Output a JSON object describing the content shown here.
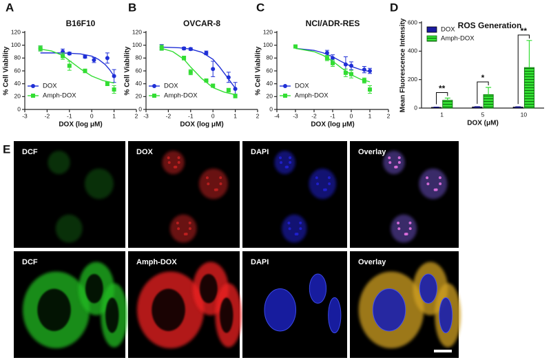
{
  "chart_data": [
    {
      "type": "scatter",
      "label": "A",
      "title": "B16F10",
      "x_label": "DOX (log μM)",
      "y_label": "% Cell Viability",
      "xlim": [
        -3,
        2
      ],
      "xticks": [
        -3,
        -2,
        -1,
        0,
        1,
        2
      ],
      "ylim": [
        0,
        120
      ],
      "yticks": [
        0,
        20,
        40,
        60,
        80,
        100,
        120
      ],
      "legend": "lower left",
      "series": [
        {
          "name": "DOX",
          "color": "#1f2fd6",
          "marker": "circle",
          "x": [
            -2.3,
            -1.3,
            -1,
            -0.3,
            0.1,
            0.7,
            1
          ],
          "values": [
            95,
            90,
            87,
            82,
            77,
            80,
            52
          ],
          "errors": [
            4,
            4,
            2,
            2,
            4,
            8,
            10
          ],
          "fit": {
            "x": [
              -2.3,
              -1.5,
              -1,
              -0.5,
              0,
              0.3,
              0.6,
              0.8,
              1
            ],
            "values": [
              88,
              88,
              87.5,
              86.5,
              83,
              78,
              70,
              62,
              52
            ]
          }
        },
        {
          "name": "Amph-DOX",
          "color": "#33dd33",
          "marker": "square",
          "x": [
            -2.3,
            -1.3,
            -1,
            -0.3,
            0.7,
            1
          ],
          "values": [
            95,
            83,
            68,
            60,
            40,
            31
          ],
          "errors": [
            4,
            5,
            7,
            3,
            3,
            6
          ],
          "fit": {
            "x": [
              -2.3,
              -1.8,
              -1.3,
              -1,
              -0.5,
              0,
              0.5,
              1
            ],
            "values": [
              94,
              91,
              84,
              76,
              63,
              52,
              45,
              41
            ]
          }
        }
      ]
    },
    {
      "type": "scatter",
      "label": "B",
      "title": "OVCAR-8",
      "x_label": "DOX (log μM)",
      "y_label": "% Cell Viability",
      "xlim": [
        -3,
        2
      ],
      "xticks": [
        -3,
        -2,
        -1,
        0,
        1,
        2
      ],
      "ylim": [
        0,
        120
      ],
      "yticks": [
        0,
        20,
        40,
        60,
        80,
        100,
        120
      ],
      "legend": "lower left",
      "series": [
        {
          "name": "DOX",
          "color": "#1f2fd6",
          "marker": "circle",
          "x": [
            -2.3,
            -1.3,
            -1,
            -0.3,
            0,
            0.7,
            1
          ],
          "values": [
            97,
            95,
            94,
            88,
            63,
            50,
            32
          ],
          "errors": [
            4,
            2,
            2,
            3,
            12,
            8,
            10
          ],
          "fit": {
            "x": [
              -2.3,
              -1.5,
              -1,
              -0.5,
              0,
              0.3,
              0.6,
              1
            ],
            "values": [
              97,
              96,
              94,
              89,
              78,
              66,
              52,
              33
            ]
          }
        },
        {
          "name": "Amph-DOX",
          "color": "#33dd33",
          "marker": "square",
          "x": [
            -2.3,
            -1.3,
            -1,
            -0.3,
            0,
            0.7,
            1
          ],
          "values": [
            96,
            80,
            58,
            45,
            37,
            30,
            21
          ],
          "errors": [
            4,
            3,
            4,
            2,
            2,
            3,
            3
          ],
          "fit": {
            "x": [
              -2.3,
              -1.8,
              -1.3,
              -1,
              -0.5,
              0,
              0.5,
              1
            ],
            "values": [
              95,
              90,
              78,
              66,
              48,
              34,
              27,
              23
            ]
          }
        }
      ]
    },
    {
      "type": "scatter",
      "label": "C",
      "title": "NCI/ADR-RES",
      "x_label": "DOX (log μM)",
      "y_label": "% Cell Viability",
      "xlim": [
        -4,
        2
      ],
      "xticks": [
        -4,
        -3,
        -2,
        -1,
        0,
        1,
        2
      ],
      "ylim": [
        0,
        120
      ],
      "yticks": [
        0,
        20,
        40,
        60,
        80,
        100,
        120
      ],
      "legend": "lower left",
      "series": [
        {
          "name": "DOX",
          "color": "#1f2fd6",
          "marker": "circle",
          "x": [
            -3,
            -1.3,
            -1,
            -0.3,
            0,
            0.7,
            1
          ],
          "values": [
            98,
            88,
            80,
            70,
            68,
            62,
            60
          ],
          "errors": [
            2,
            4,
            5,
            12,
            6,
            5,
            4
          ],
          "fit": {
            "x": [
              -3,
              -2,
              -1.5,
              -1,
              -0.5,
              0,
              0.5,
              1
            ],
            "values": [
              95,
              92,
              88,
              82,
              74,
              67,
              62,
              59
            ]
          }
        },
        {
          "name": "Amph-DOX",
          "color": "#33dd33",
          "marker": "square",
          "x": [
            -3,
            -1.3,
            -1,
            -0.3,
            0,
            0.7,
            1
          ],
          "values": [
            98,
            80,
            72,
            57,
            55,
            45,
            31
          ],
          "errors": [
            2,
            4,
            5,
            6,
            6,
            4,
            6
          ],
          "fit": {
            "x": [
              -3,
              -2,
              -1.5,
              -1,
              -0.5,
              0,
              0.5,
              1
            ],
            "values": [
              95,
              90,
              84,
              75,
              64,
              54,
              47,
              43
            ]
          }
        }
      ]
    },
    {
      "type": "bar",
      "label": "D",
      "title": "ROS Generation",
      "x_label": "DOX (μM)",
      "y_label": "Mean Fluorescence Intensity",
      "categories": [
        "1",
        "5",
        "10"
      ],
      "ylim": [
        0,
        600
      ],
      "yticks": [
        0,
        200,
        400,
        600
      ],
      "legend": "upper left",
      "series": [
        {
          "name": "DOX",
          "color": "#1a1aa0",
          "values": [
            5,
            8,
            7
          ],
          "errors": [
            2,
            2,
            2
          ]
        },
        {
          "name": "Amph-DOX",
          "color": "#33dd33",
          "values": [
            55,
            95,
            285
          ],
          "errors": [
            15,
            50,
            190
          ]
        }
      ],
      "significance": [
        "**",
        "*",
        "**"
      ]
    }
  ],
  "figure_e": {
    "label": "E",
    "rows": [
      [
        "DCF",
        "DOX",
        "DAPI",
        "Overlay"
      ],
      [
        "DCF",
        "Amph-DOX",
        "DAPI",
        "Overlay"
      ]
    ]
  }
}
